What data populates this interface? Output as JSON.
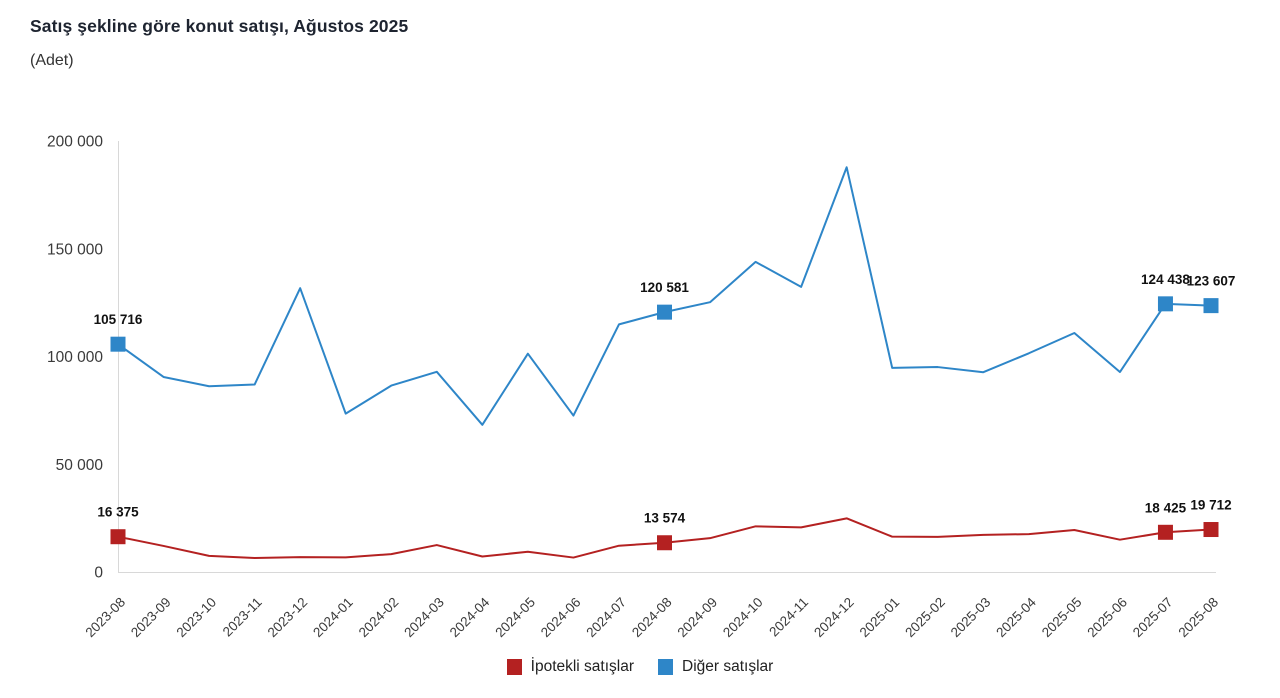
{
  "title": "Satış şekline göre konut satışı, Ağustos 2025",
  "subtitle": "(Adet)",
  "legend": [
    {
      "label": "İpotekli satışlar",
      "color": "#b42121"
    },
    {
      "label": "Diğer satışlar",
      "color": "#2e86c8"
    }
  ],
  "chart_data": {
    "type": "line",
    "title": "Satış şekline göre konut satışı, Ağustos 2025",
    "ylabel": "Adet",
    "ylim": [
      0,
      200000
    ],
    "yticks": [
      0,
      50000,
      100000,
      150000,
      200000
    ],
    "grid": false,
    "legend_position": "bottom",
    "x": [
      "2023-08",
      "2023-09",
      "2023-10",
      "2023-11",
      "2023-12",
      "2024-01",
      "2024-02",
      "2024-03",
      "2024-04",
      "2024-05",
      "2024-06",
      "2024-07",
      "2024-08",
      "2024-09",
      "2024-10",
      "2024-11",
      "2024-12",
      "2025-01",
      "2025-02",
      "2025-03",
      "2025-04",
      "2025-05",
      "2025-06",
      "2025-07",
      "2025-08"
    ],
    "series": [
      {
        "name": "İpotekli satışlar",
        "color": "#b42121",
        "values": [
          16375,
          12100,
          7500,
          6500,
          6900,
          6800,
          8300,
          12500,
          7200,
          9400,
          6700,
          12200,
          13574,
          15700,
          21200,
          20700,
          24900,
          16400,
          16300,
          17200,
          17600,
          19500,
          15000,
          18425,
          19712
        ],
        "labeled_indices": [
          0,
          12,
          23,
          24
        ],
        "labeled_values": [
          "16 375",
          "13 574",
          "18 425",
          "19 712"
        ]
      },
      {
        "name": "Diğer satışlar",
        "color": "#2e86c8",
        "values": [
          105716,
          90500,
          86200,
          87000,
          131700,
          73500,
          86500,
          92900,
          68300,
          101300,
          72600,
          114900,
          120581,
          125200,
          143900,
          132300,
          187800,
          94700,
          95100,
          92700,
          101500,
          110900,
          92800,
          124438,
          123607
        ],
        "labeled_indices": [
          0,
          12,
          23,
          24
        ],
        "labeled_values": [
          "105 716",
          "120 581",
          "124 438",
          "123 607"
        ]
      }
    ]
  }
}
